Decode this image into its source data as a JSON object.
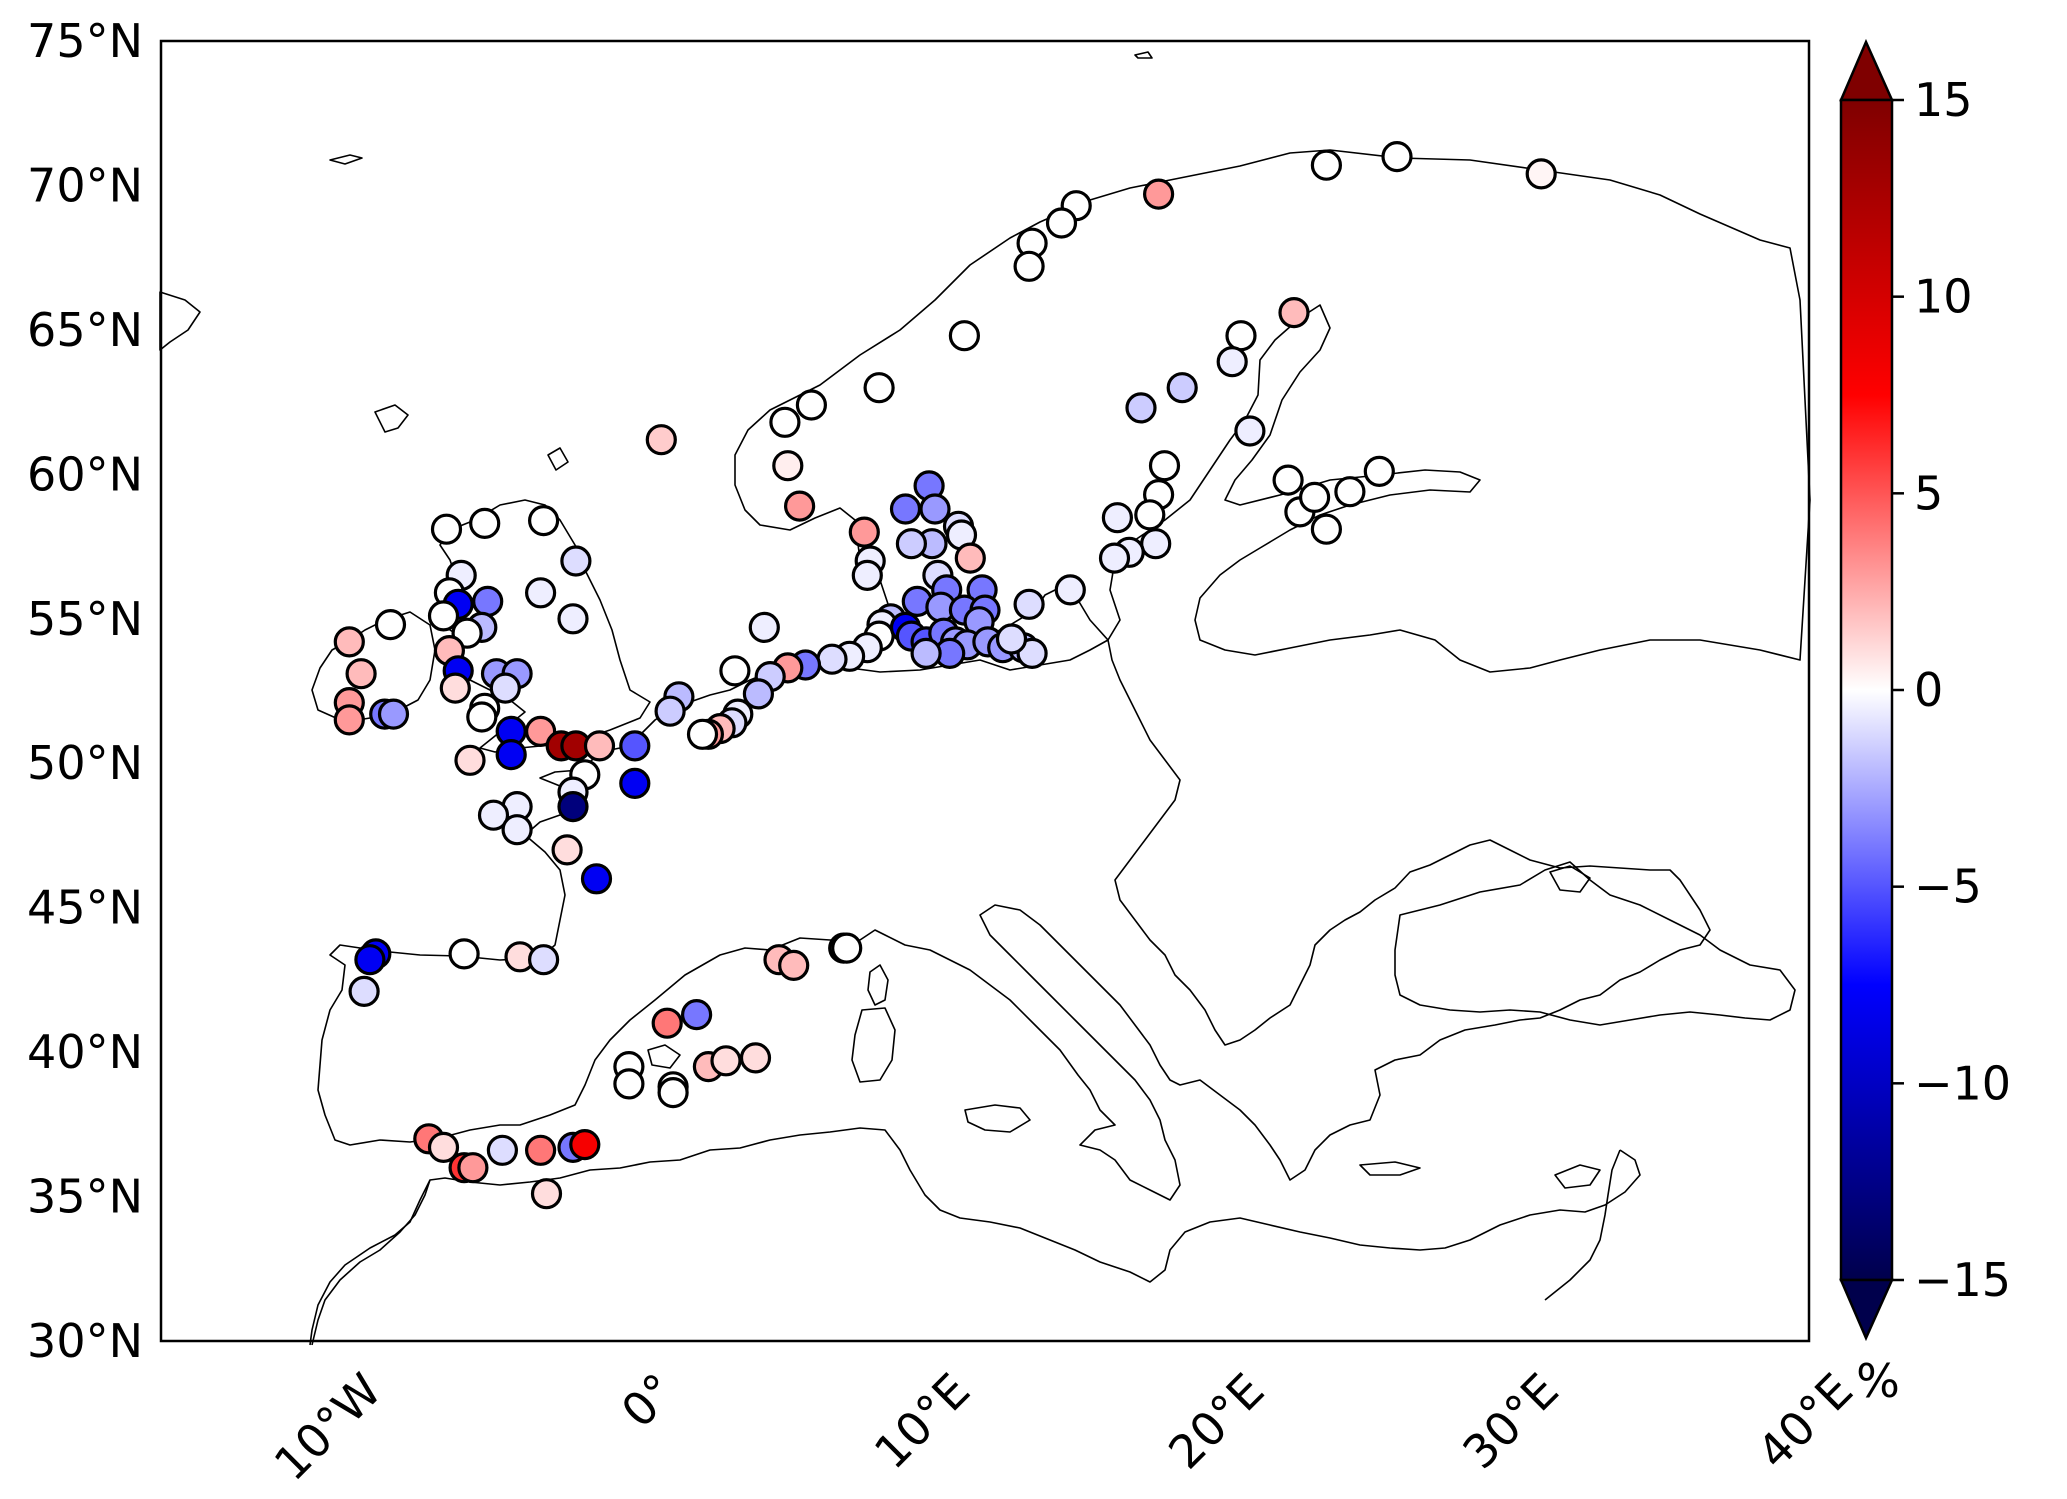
{
  "map": {
    "extent": {
      "lon": [
        -16,
        40
      ],
      "lat": [
        30,
        75
      ]
    },
    "y_ticks": [
      {
        "lat": 75,
        "label": "75°N"
      },
      {
        "lat": 70,
        "label": "70°N"
      },
      {
        "lat": 65,
        "label": "65°N"
      },
      {
        "lat": 60,
        "label": "60°N"
      },
      {
        "lat": 55,
        "label": "55°N"
      },
      {
        "lat": 50,
        "label": "50°N"
      },
      {
        "lat": 45,
        "label": "45°N"
      },
      {
        "lat": 40,
        "label": "40°N"
      },
      {
        "lat": 35,
        "label": "35°N"
      },
      {
        "lat": 30,
        "label": "30°N"
      }
    ],
    "x_ticks": [
      {
        "lon": -10,
        "label": "10°W"
      },
      {
        "lon": 0,
        "label": "0°"
      },
      {
        "lon": 10,
        "label": "10°E"
      },
      {
        "lon": 20,
        "label": "20°E"
      },
      {
        "lon": 30,
        "label": "30°E"
      },
      {
        "lon": 40,
        "label": "40°E"
      }
    ]
  },
  "colorbar": {
    "min": -15,
    "max": 15,
    "unit": "%",
    "ticks": [
      {
        "value": 15,
        "label": "15"
      },
      {
        "value": 10,
        "label": "10"
      },
      {
        "value": 5,
        "label": "5"
      },
      {
        "value": 0,
        "label": "0"
      },
      {
        "value": -5,
        "label": "−5"
      },
      {
        "value": -10,
        "label": "−10"
      },
      {
        "value": -15,
        "label": "−15"
      }
    ],
    "colormap": "seismic",
    "colors": [
      "#00004c",
      "#0000ff",
      "#ffffff",
      "#ff0000",
      "#7f0000"
    ]
  },
  "stations": [
    {
      "lon": 26.0,
      "lat": 71.0,
      "v": 0
    },
    {
      "lon": 23.6,
      "lat": 70.7,
      "v": 0
    },
    {
      "lon": 30.9,
      "lat": 70.4,
      "v": 0.3
    },
    {
      "lon": 17.9,
      "lat": 69.7,
      "v": 3
    },
    {
      "lon": 15.1,
      "lat": 69.3,
      "v": 0
    },
    {
      "lon": 14.6,
      "lat": 68.7,
      "v": 0
    },
    {
      "lon": 13.6,
      "lat": 68.0,
      "v": 0
    },
    {
      "lon": 13.5,
      "lat": 67.2,
      "v": 0
    },
    {
      "lon": 11.3,
      "lat": 64.8,
      "v": 0
    },
    {
      "lon": 8.4,
      "lat": 63.0,
      "v": 0
    },
    {
      "lon": 6.1,
      "lat": 62.4,
      "v": 0
    },
    {
      "lon": 5.2,
      "lat": 61.8,
      "v": 0
    },
    {
      "lon": 5.3,
      "lat": 60.3,
      "v": 0.5
    },
    {
      "lon": 5.7,
      "lat": 58.9,
      "v": 3
    },
    {
      "lon": 7.9,
      "lat": 58.0,
      "v": 3
    },
    {
      "lon": 1.0,
      "lat": 61.2,
      "v": 1.5
    },
    {
      "lon": 22.5,
      "lat": 65.6,
      "v": 2
    },
    {
      "lon": 20.7,
      "lat": 64.8,
      "v": 0
    },
    {
      "lon": 20.4,
      "lat": 63.9,
      "v": -0.5
    },
    {
      "lon": 18.7,
      "lat": 63.0,
      "v": -1.5
    },
    {
      "lon": 17.3,
      "lat": 62.3,
      "v": -1.5
    },
    {
      "lon": 21.0,
      "lat": 61.5,
      "v": -0.5
    },
    {
      "lon": 18.1,
      "lat": 60.3,
      "v": 0
    },
    {
      "lon": 17.9,
      "lat": 59.3,
      "v": 0
    },
    {
      "lon": 17.6,
      "lat": 58.6,
      "v": 0
    },
    {
      "lon": 16.5,
      "lat": 58.5,
      "v": -0.5
    },
    {
      "lon": 17.8,
      "lat": 57.6,
      "v": -0.5
    },
    {
      "lon": 16.9,
      "lat": 57.3,
      "v": -0.5
    },
    {
      "lon": 16.4,
      "lat": 57.1,
      "v": -0.5
    },
    {
      "lon": 14.9,
      "lat": 56.0,
      "v": -0.5
    },
    {
      "lon": 13.5,
      "lat": 55.5,
      "v": -1
    },
    {
      "lon": 22.3,
      "lat": 59.8,
      "v": 0
    },
    {
      "lon": 22.7,
      "lat": 58.7,
      "v": 0
    },
    {
      "lon": 23.2,
      "lat": 59.2,
      "v": 0
    },
    {
      "lon": 23.6,
      "lat": 58.1,
      "v": 0
    },
    {
      "lon": 24.4,
      "lat": 59.4,
      "v": 0
    },
    {
      "lon": 25.4,
      "lat": 60.1,
      "v": 0
    },
    {
      "lon": 10.1,
      "lat": 59.6,
      "v": -4
    },
    {
      "lon": 9.3,
      "lat": 58.8,
      "v": -4
    },
    {
      "lon": 10.3,
      "lat": 58.8,
      "v": -3
    },
    {
      "lon": 11.1,
      "lat": 58.2,
      "v": -1
    },
    {
      "lon": 11.2,
      "lat": 57.9,
      "v": -0.5
    },
    {
      "lon": 11.5,
      "lat": 57.1,
      "v": 2
    },
    {
      "lon": 10.2,
      "lat": 57.6,
      "v": -2
    },
    {
      "lon": 9.5,
      "lat": 57.6,
      "v": -1.5
    },
    {
      "lon": 8.1,
      "lat": 57.0,
      "v": -0.5
    },
    {
      "lon": 8.0,
      "lat": 56.5,
      "v": -0.5
    },
    {
      "lon": 10.4,
      "lat": 56.5,
      "v": -1
    },
    {
      "lon": 10.7,
      "lat": 56.0,
      "v": -4
    },
    {
      "lon": 11.9,
      "lat": 56.0,
      "v": -4
    },
    {
      "lon": 9.7,
      "lat": 55.6,
      "v": -4
    },
    {
      "lon": 10.5,
      "lat": 55.4,
      "v": -3
    },
    {
      "lon": 11.3,
      "lat": 55.3,
      "v": -4
    },
    {
      "lon": 12.0,
      "lat": 55.3,
      "v": -4
    },
    {
      "lon": 11.8,
      "lat": 54.9,
      "v": -3
    },
    {
      "lon": 8.8,
      "lat": 55.0,
      "v": -2
    },
    {
      "lon": 8.5,
      "lat": 54.8,
      "v": -0.5
    },
    {
      "lon": 8.4,
      "lat": 54.4,
      "v": 0
    },
    {
      "lon": 8.0,
      "lat": 54.0,
      "v": -0.5
    },
    {
      "lon": 9.3,
      "lat": 54.7,
      "v": -8
    },
    {
      "lon": 9.5,
      "lat": 54.4,
      "v": -5
    },
    {
      "lon": 10.0,
      "lat": 54.2,
      "v": -5
    },
    {
      "lon": 10.6,
      "lat": 54.5,
      "v": -4
    },
    {
      "lon": 11.0,
      "lat": 54.2,
      "v": -3
    },
    {
      "lon": 11.4,
      "lat": 54.1,
      "v": -3
    },
    {
      "lon": 10.8,
      "lat": 53.8,
      "v": -4
    },
    {
      "lon": 10.0,
      "lat": 53.8,
      "v": -2
    },
    {
      "lon": 12.1,
      "lat": 54.2,
      "v": -3
    },
    {
      "lon": 12.6,
      "lat": 54.0,
      "v": -3
    },
    {
      "lon": 13.3,
      "lat": 54.0,
      "v": -2
    },
    {
      "lon": 13.6,
      "lat": 53.8,
      "v": -1
    },
    {
      "lon": 12.9,
      "lat": 54.3,
      "v": -1
    },
    {
      "lon": 7.4,
      "lat": 53.7,
      "v": -0.5
    },
    {
      "lon": 6.8,
      "lat": 53.6,
      "v": -1
    },
    {
      "lon": 5.9,
      "lat": 53.4,
      "v": -4
    },
    {
      "lon": 5.3,
      "lat": 53.3,
      "v": 3
    },
    {
      "lon": 4.7,
      "lat": 53.0,
      "v": -1.5
    },
    {
      "lon": 4.3,
      "lat": 52.4,
      "v": -2
    },
    {
      "lon": 4.5,
      "lat": 54.7,
      "v": -0.5
    },
    {
      "lon": 3.6,
      "lat": 51.7,
      "v": -0.5
    },
    {
      "lon": 3.4,
      "lat": 51.4,
      "v": -1
    },
    {
      "lon": 3.0,
      "lat": 51.2,
      "v": 2
    },
    {
      "lon": 2.6,
      "lat": 51.0,
      "v": 3
    },
    {
      "lon": 2.4,
      "lat": 51.0,
      "v": 0
    },
    {
      "lon": 3.5,
      "lat": 53.2,
      "v": 0
    },
    {
      "lon": 1.6,
      "lat": 52.3,
      "v": -2
    },
    {
      "lon": 1.3,
      "lat": 51.8,
      "v": -1.5
    },
    {
      "lon": -3.0,
      "lat": 58.4,
      "v": 0
    },
    {
      "lon": -5.0,
      "lat": 58.3,
      "v": 0
    },
    {
      "lon": -6.3,
      "lat": 58.1,
      "v": 0
    },
    {
      "lon": -1.9,
      "lat": 57.0,
      "v": -1
    },
    {
      "lon": -2.0,
      "lat": 55.0,
      "v": -0.5
    },
    {
      "lon": -3.1,
      "lat": 55.9,
      "v": -0.5
    },
    {
      "lon": -5.8,
      "lat": 56.5,
      "v": -0.5
    },
    {
      "lon": -6.2,
      "lat": 55.9,
      "v": 0
    },
    {
      "lon": -5.9,
      "lat": 55.5,
      "v": -8
    },
    {
      "lon": -6.4,
      "lat": 55.1,
      "v": 0
    },
    {
      "lon": -4.9,
      "lat": 55.6,
      "v": -4
    },
    {
      "lon": -5.1,
      "lat": 54.7,
      "v": -2
    },
    {
      "lon": -5.6,
      "lat": 54.5,
      "v": 0
    },
    {
      "lon": -6.2,
      "lat": 53.9,
      "v": 2
    },
    {
      "lon": -5.9,
      "lat": 53.2,
      "v": -8
    },
    {
      "lon": -4.6,
      "lat": 53.1,
      "v": -3
    },
    {
      "lon": -3.9,
      "lat": 53.1,
      "v": -3
    },
    {
      "lon": -4.3,
      "lat": 52.6,
      "v": -1
    },
    {
      "lon": -6.0,
      "lat": 52.6,
      "v": 1
    },
    {
      "lon": -5.0,
      "lat": 51.9,
      "v": 0
    },
    {
      "lon": -5.1,
      "lat": 51.6,
      "v": 0
    },
    {
      "lon": -8.2,
      "lat": 54.8,
      "v": 0
    },
    {
      "lon": -9.6,
      "lat": 54.2,
      "v": 2
    },
    {
      "lon": -9.2,
      "lat": 53.1,
      "v": 2
    },
    {
      "lon": -9.6,
      "lat": 52.1,
      "v": 3
    },
    {
      "lon": -9.6,
      "lat": 51.5,
      "v": 3
    },
    {
      "lon": -8.4,
      "lat": 51.7,
      "v": -4
    },
    {
      "lon": -8.1,
      "lat": 51.7,
      "v": -3
    },
    {
      "lon": -4.1,
      "lat": 51.1,
      "v": -8
    },
    {
      "lon": -4.1,
      "lat": 50.3,
      "v": -8
    },
    {
      "lon": -3.1,
      "lat": 51.1,
      "v": 3
    },
    {
      "lon": -2.4,
      "lat": 50.6,
      "v": 13
    },
    {
      "lon": -1.9,
      "lat": 50.6,
      "v": 13
    },
    {
      "lon": -1.1,
      "lat": 50.6,
      "v": 2
    },
    {
      "lon": -5.5,
      "lat": 50.1,
      "v": 1
    },
    {
      "lon": 0.1,
      "lat": 50.6,
      "v": -5
    },
    {
      "lon": 0.1,
      "lat": 49.3,
      "v": -8
    },
    {
      "lon": -1.6,
      "lat": 49.6,
      "v": 0
    },
    {
      "lon": -2.0,
      "lat": 49.0,
      "v": -0.5
    },
    {
      "lon": -2.0,
      "lat": 48.5,
      "v": -13
    },
    {
      "lon": -3.9,
      "lat": 48.5,
      "v": -0.5
    },
    {
      "lon": -4.7,
      "lat": 48.2,
      "v": -0.5
    },
    {
      "lon": -3.9,
      "lat": 47.7,
      "v": -0.5
    },
    {
      "lon": -2.2,
      "lat": 47.0,
      "v": 1
    },
    {
      "lon": -1.2,
      "lat": 46.0,
      "v": -8
    },
    {
      "lon": -8.7,
      "lat": 43.4,
      "v": -8
    },
    {
      "lon": -8.9,
      "lat": 43.2,
      "v": -8
    },
    {
      "lon": -9.1,
      "lat": 42.1,
      "v": -1
    },
    {
      "lon": -5.7,
      "lat": 43.4,
      "v": 0
    },
    {
      "lon": -3.8,
      "lat": 43.3,
      "v": 1
    },
    {
      "lon": -3.0,
      "lat": 43.2,
      "v": -1
    },
    {
      "lon": -6.9,
      "lat": 37.0,
      "v": 4
    },
    {
      "lon": -6.4,
      "lat": 36.7,
      "v": 1
    },
    {
      "lon": -5.7,
      "lat": 36.0,
      "v": 6
    },
    {
      "lon": -5.4,
      "lat": 36.0,
      "v": 3
    },
    {
      "lon": -4.4,
      "lat": 36.6,
      "v": -1
    },
    {
      "lon": -3.1,
      "lat": 36.6,
      "v": 4
    },
    {
      "lon": -2.0,
      "lat": 36.7,
      "v": -4
    },
    {
      "lon": -1.6,
      "lat": 36.8,
      "v": 8
    },
    {
      "lon": -2.9,
      "lat": 35.1,
      "v": 1
    },
    {
      "lon": -0.1,
      "lat": 39.5,
      "v": 0
    },
    {
      "lon": -0.1,
      "lat": 38.9,
      "v": 0
    },
    {
      "lon": 1.4,
      "lat": 38.8,
      "v": 0
    },
    {
      "lon": 1.4,
      "lat": 38.6,
      "v": 0
    },
    {
      "lon": 2.6,
      "lat": 39.5,
      "v": 2
    },
    {
      "lon": 3.2,
      "lat": 39.7,
      "v": 1
    },
    {
      "lon": 4.2,
      "lat": 39.8,
      "v": 1
    },
    {
      "lon": 1.2,
      "lat": 41.0,
      "v": 4
    },
    {
      "lon": 2.2,
      "lat": 41.3,
      "v": -4
    },
    {
      "lon": 5.0,
      "lat": 43.2,
      "v": 2
    },
    {
      "lon": 5.5,
      "lat": 43.0,
      "v": 2
    },
    {
      "lon": 7.2,
      "lat": 43.6,
      "v": 0
    },
    {
      "lon": 7.3,
      "lat": 43.6,
      "v": 0
    }
  ]
}
